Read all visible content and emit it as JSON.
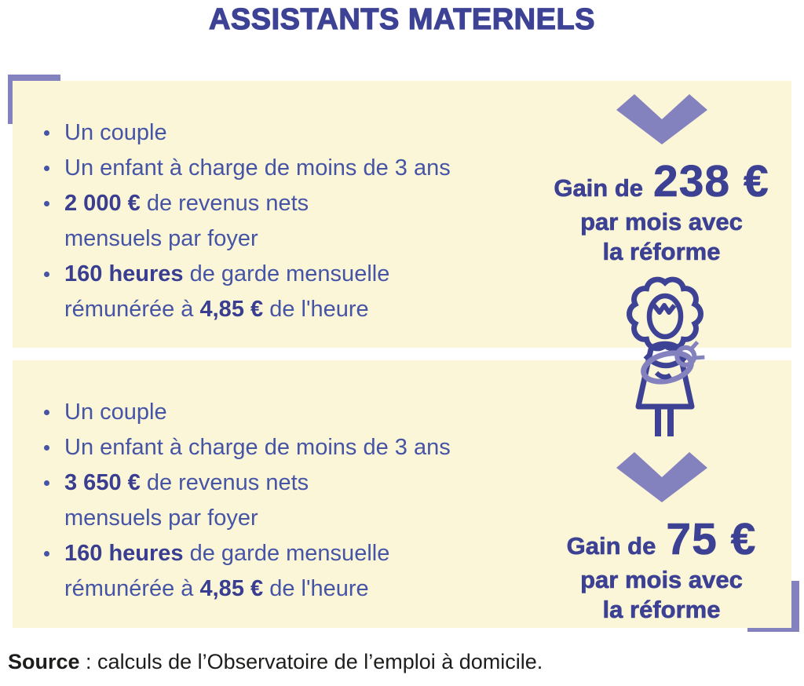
{
  "title": "ASSISTANTS MATERNELS",
  "colors": {
    "background_cream": "#FBF6D8",
    "accent_purple": "#8481BF",
    "heading_navy": "#3D4295",
    "body_blue": "#4654A6",
    "bold_navy": "#393E91",
    "source_text": "#1D1D1B"
  },
  "scenarios": [
    {
      "bullets": [
        {
          "segments": [
            {
              "text": "Un couple"
            }
          ]
        },
        {
          "segments": [
            {
              "text": "Un enfant à charge de moins de 3 ans"
            }
          ]
        },
        {
          "segments": [
            {
              "text": "2 000 €",
              "bold": true
            },
            {
              "text": " de revenus nets"
            },
            {
              "break": true
            },
            {
              "text": "mensuels par foyer"
            }
          ]
        },
        {
          "segments": [
            {
              "text": "160 heures",
              "bold": true
            },
            {
              "text": " de garde mensuelle"
            },
            {
              "break": true
            },
            {
              "text": "rémunérée à "
            },
            {
              "text": "4,85 €",
              "bold": true
            },
            {
              "text": " de l'heure"
            }
          ]
        }
      ],
      "gain": {
        "prefix": "Gain de",
        "amount": "238 €",
        "line2": "par mois avec",
        "line3": "la réforme"
      }
    },
    {
      "bullets": [
        {
          "segments": [
            {
              "text": "Un couple"
            }
          ]
        },
        {
          "segments": [
            {
              "text": "Un enfant à charge de moins de 3 ans"
            }
          ]
        },
        {
          "segments": [
            {
              "text": "3 650 €",
              "bold": true
            },
            {
              "text": " de revenus nets"
            },
            {
              "break": true
            },
            {
              "text": "mensuels par foyer"
            }
          ]
        },
        {
          "segments": [
            {
              "text": "160 heures",
              "bold": true
            },
            {
              "text": " de garde mensuelle"
            },
            {
              "break": true
            },
            {
              "text": "rémunérée à "
            },
            {
              "text": "4,85 €",
              "bold": true
            },
            {
              "text": " de l'heure"
            }
          ]
        }
      ],
      "gain": {
        "prefix": "Gain de",
        "amount": "75 €",
        "line2": "par mois avec",
        "line3": "la réforme"
      }
    }
  ],
  "icon_label": "caregiver-holding-baby",
  "source": {
    "label": "Source",
    "text": " : calculs de l’Observatoire de l’emploi à domicile."
  }
}
